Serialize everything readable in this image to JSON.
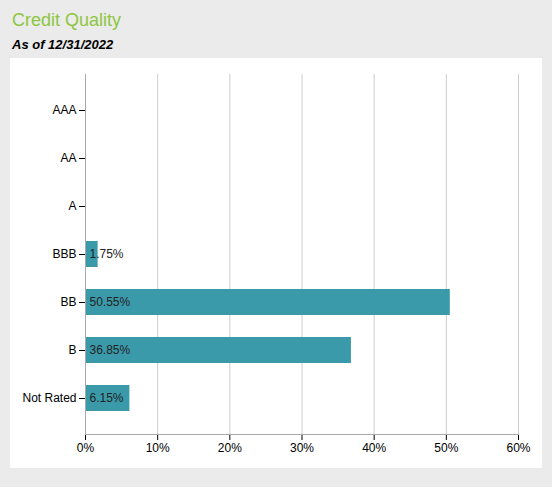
{
  "chart_data": {
    "type": "bar",
    "orientation": "horizontal",
    "title": "Credit Quality",
    "subtitle": "As of 12/31/2022",
    "categories": [
      "AAA",
      "AA",
      "A",
      "BBB",
      "BB",
      "B",
      "Not Rated"
    ],
    "values": [
      0.0,
      0.0,
      0.0,
      1.75,
      50.55,
      36.85,
      6.15
    ],
    "value_labels": [
      null,
      null,
      null,
      "1.75%",
      "50.55%",
      "36.85%",
      "6.15%"
    ],
    "data_labels": true,
    "color": "#3a9aaa",
    "xlim": [
      0,
      60
    ],
    "xticks": [
      {
        "value": 0,
        "label": "0%"
      },
      {
        "value": 10,
        "label": "10%"
      },
      {
        "value": 20,
        "label": "20%"
      },
      {
        "value": 30,
        "label": "30%"
      },
      {
        "value": 40,
        "label": "40%"
      },
      {
        "value": 50,
        "label": "50%"
      },
      {
        "value": 60,
        "label": "60%"
      }
    ],
    "grid": "x"
  }
}
